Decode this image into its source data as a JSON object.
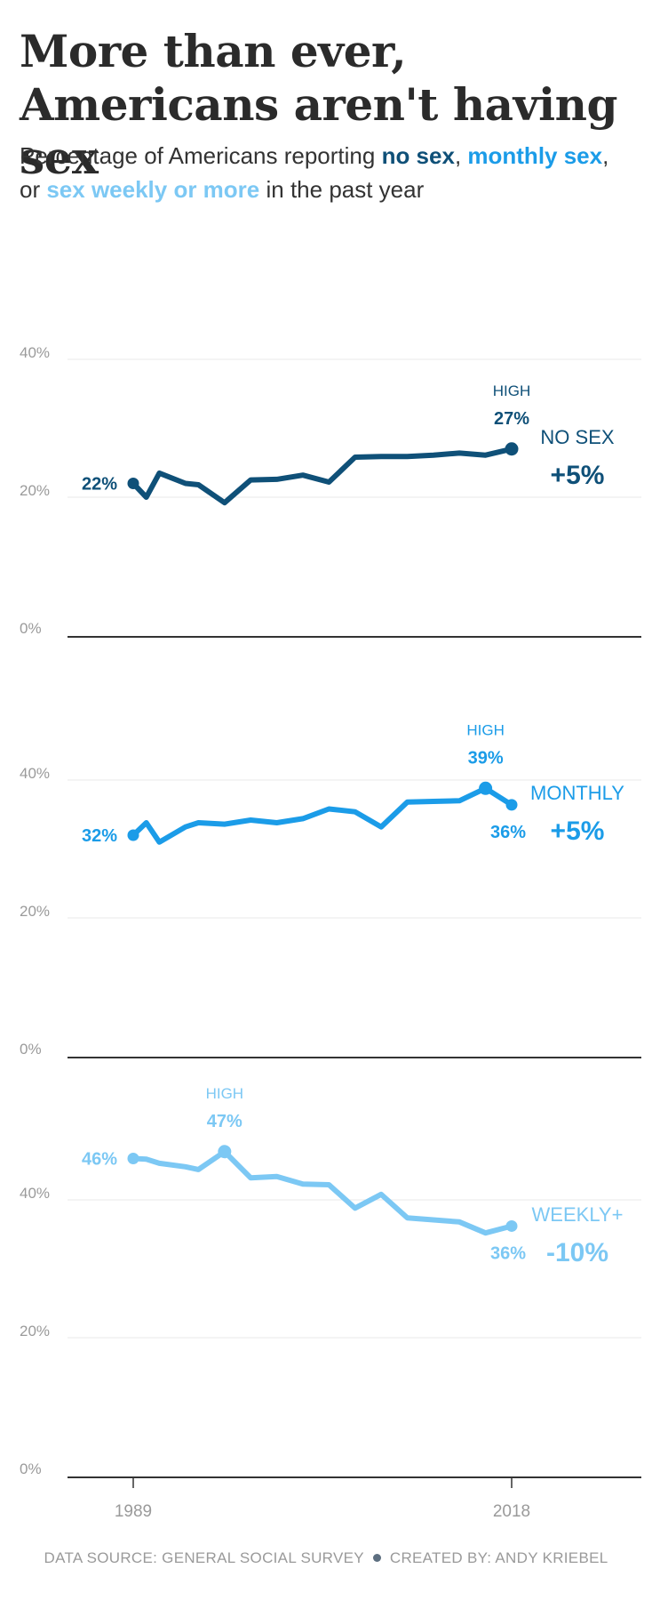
{
  "title": "More than ever, Americans aren't having sex",
  "subtitle": {
    "prefix": "Percentage of Americans reporting ",
    "no_sex": "no sex",
    "sep1": ", ",
    "monthly": "monthly sex",
    "sep2": ",",
    "or": "or ",
    "weekly": "sex weekly or more",
    "suffix": " in the past year"
  },
  "colors": {
    "no_sex": "#0f5078",
    "monthly": "#1b9ce8",
    "weekly": "#7cc8f4",
    "grid": "#e8e8e8",
    "baseline": "#333333",
    "tick": "#9a9a9a"
  },
  "chart_data": {
    "type": "line",
    "x_ticks": [
      1989,
      2018
    ],
    "y_ticks": [
      "0%",
      "20%",
      "40%"
    ],
    "ylim": [
      0,
      40
    ],
    "series": [
      {
        "key": "no_sex",
        "name": "NO SEX",
        "change": "+5%",
        "high_label": "HIGH",
        "high_value": "27%",
        "start_label": "22%",
        "end_label": "",
        "x": [
          1989,
          1990,
          1991,
          1993,
          1994,
          1996,
          1998,
          2000,
          2002,
          2004,
          2006,
          2008,
          2010,
          2012,
          2014,
          2016,
          2018
        ],
        "y": [
          22,
          20,
          23.5,
          22,
          21.8,
          19.2,
          22.5,
          22.6,
          23.2,
          22.2,
          25.8,
          25.9,
          25.9,
          26.1,
          26.4,
          26.1,
          27
        ]
      },
      {
        "key": "monthly",
        "name": "MONTHLY",
        "change": "+5%",
        "high_label": "HIGH",
        "high_value": "39%",
        "start_label": "32%",
        "end_label": "36%",
        "x": [
          1989,
          1990,
          1991,
          1993,
          1994,
          1996,
          1998,
          2000,
          2002,
          2004,
          2006,
          2008,
          2010,
          2012,
          2014,
          2016,
          2018
        ],
        "y": [
          32,
          33.8,
          31,
          33.2,
          33.8,
          33.6,
          34.2,
          33.8,
          34.4,
          35.8,
          35.4,
          33.2,
          36.8,
          36.9,
          37,
          38.8,
          36.4
        ]
      },
      {
        "key": "weekly",
        "name": "WEEKLY+",
        "change": "-10%",
        "high_label": "HIGH",
        "high_value": "47%",
        "start_label": "46%",
        "end_label": "36%",
        "x": [
          1989,
          1990,
          1991,
          1993,
          1994,
          1996,
          1998,
          2000,
          2002,
          2004,
          2006,
          2008,
          2010,
          2012,
          2014,
          2016,
          2018
        ],
        "y": [
          46,
          45.9,
          45.3,
          44.8,
          44.4,
          47,
          43.2,
          43.4,
          42.3,
          42.2,
          38.8,
          40.8,
          37.4,
          37.1,
          36.8,
          35.2,
          36.2
        ]
      }
    ]
  },
  "footer": {
    "source": "DATA SOURCE: GENERAL SOCIAL SURVEY",
    "credit": "CREATED BY: ANDY KRIEBEL"
  }
}
